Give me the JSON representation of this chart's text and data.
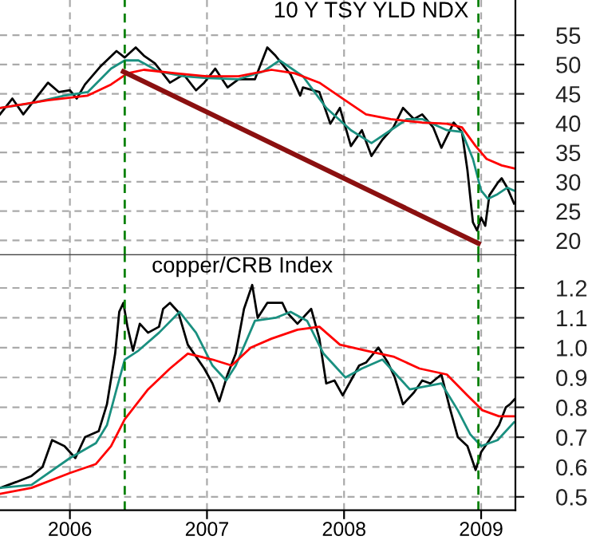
{
  "chart_data": [
    {
      "type": "line",
      "title": "10 Y TSY YLD NDX",
      "xlim": [
        2005.49,
        2009.25
      ],
      "xticks": [
        2006,
        2007,
        2008,
        2009
      ],
      "ylim": [
        17.5,
        61
      ],
      "yticks": [
        20,
        25,
        30,
        35,
        40,
        45,
        50,
        55
      ],
      "grid": true,
      "tick_labels": "y",
      "legend": false,
      "ref_lines": [
        {
          "axis": "x",
          "value": 2006.4,
          "color": "#008000",
          "line_style": "dashed"
        },
        {
          "axis": "x",
          "value": 2008.98,
          "color": "#008000",
          "line_style": "dashed"
        }
      ],
      "series": [
        {
          "color": "#000000",
          "x": [
            2005.49,
            2005.58,
            2005.66,
            2005.84,
            2005.92,
            2006.0,
            2006.05,
            2006.11,
            2006.22,
            2006.34,
            2006.4,
            2006.48,
            2006.54,
            2006.62,
            2006.73,
            2006.83,
            2006.92,
            2006.98,
            2007.06,
            2007.15,
            2007.23,
            2007.35,
            2007.44,
            2007.5,
            2007.61,
            2007.68,
            2007.7,
            2007.82,
            2007.9,
            2007.97,
            2008.05,
            2008.13,
            2008.2,
            2008.28,
            2008.36,
            2008.43,
            2008.51,
            2008.57,
            2008.65,
            2008.71,
            2008.8,
            2008.86,
            2008.9,
            2008.94,
            2008.97,
            2009.0,
            2009.03,
            2009.06,
            2009.12,
            2009.15,
            2009.19,
            2009.24
          ],
          "values": [
            41.5,
            44.2,
            41.5,
            46.9,
            45.3,
            45.6,
            44.2,
            46.6,
            49.6,
            52.3,
            51.2,
            52.9,
            51.5,
            50.2,
            46.9,
            48.3,
            45.6,
            46.9,
            49.3,
            46.1,
            47.5,
            47.5,
            52.9,
            51.5,
            48.3,
            44.7,
            46.1,
            45.3,
            39.9,
            42.6,
            36.1,
            38.8,
            34.4,
            37.2,
            39.3,
            42.6,
            40.7,
            41.5,
            39.3,
            35.8,
            40.1,
            38.5,
            32.0,
            23.1,
            21.7,
            23.9,
            22.5,
            27.7,
            29.8,
            30.6,
            29.0,
            26.3
          ]
        },
        {
          "color": "#1a9080",
          "x": [
            2005.49,
            2005.72,
            2005.96,
            2006.13,
            2006.3,
            2006.4,
            2006.5,
            2006.65,
            2006.83,
            2007.0,
            2007.23,
            2007.41,
            2007.53,
            2007.7,
            2007.87,
            2008.05,
            2008.2,
            2008.34,
            2008.46,
            2008.57,
            2008.75,
            2008.86,
            2008.94,
            2009.0,
            2009.05,
            2009.12,
            2009.19,
            2009.24
          ],
          "values": [
            42.6,
            43.4,
            44.7,
            45.3,
            49.3,
            50.7,
            50.7,
            48.8,
            48.0,
            47.7,
            47.5,
            48.8,
            50.7,
            48.0,
            42.6,
            38.8,
            36.6,
            38.8,
            40.7,
            40.7,
            38.8,
            38.5,
            33.9,
            28.5,
            27.1,
            27.9,
            29.0,
            28.5
          ]
        },
        {
          "color": "#ff0000",
          "x": [
            2005.49,
            2005.84,
            2006.13,
            2006.3,
            2006.42,
            2006.54,
            2006.77,
            2007.0,
            2007.23,
            2007.47,
            2007.64,
            2007.82,
            2007.99,
            2008.16,
            2008.34,
            2008.57,
            2008.75,
            2008.86,
            2008.96,
            2009.04,
            2009.15,
            2009.24
          ],
          "values": [
            42.6,
            43.9,
            44.7,
            46.6,
            48.5,
            49.1,
            48.5,
            48.0,
            48.0,
            49.1,
            48.5,
            46.9,
            44.2,
            41.5,
            40.7,
            40.1,
            39.9,
            39.3,
            36.1,
            33.9,
            32.8,
            32.3
          ]
        },
        {
          "color": "#8b1010",
          "x": [
            2006.39,
            2008.98
          ],
          "values": [
            48.8,
            19.5
          ]
        }
      ]
    },
    {
      "type": "line",
      "title": "copper/CRB Index",
      "xlim": [
        2005.49,
        2009.25
      ],
      "xticks": [
        2006,
        2007,
        2008,
        2009
      ],
      "ylim": [
        0.455,
        1.31
      ],
      "yticks": [
        0.5,
        0.6,
        0.7,
        0.8,
        0.9,
        {
          "value": 1.0,
          "label": "1.0"
        },
        1.1,
        1.2
      ],
      "grid": true,
      "legend": false,
      "ref_lines": [
        {
          "axis": "x",
          "value": 2006.4,
          "color": "#008000",
          "line_style": "dashed"
        },
        {
          "axis": "x",
          "value": 2008.98,
          "color": "#008000",
          "line_style": "dashed"
        }
      ],
      "series": [
        {
          "color": "#000000",
          "x": [
            2005.49,
            2005.61,
            2005.72,
            2005.8,
            2005.87,
            2005.96,
            2006.04,
            2006.11,
            2006.21,
            2006.27,
            2006.33,
            2006.36,
            2006.39,
            2006.42,
            2006.46,
            2006.51,
            2006.57,
            2006.65,
            2006.68,
            2006.73,
            2006.79,
            2006.86,
            2006.98,
            2007.04,
            2007.09,
            2007.15,
            2007.21,
            2007.27,
            2007.33,
            2007.37,
            2007.44,
            2007.55,
            2007.58,
            2007.66,
            2007.76,
            2007.82,
            2007.87,
            2007.93,
            2007.99,
            2008.05,
            2008.11,
            2008.16,
            2008.25,
            2008.32,
            2008.37,
            2008.43,
            2008.51,
            2008.57,
            2008.63,
            2008.71,
            2008.77,
            2008.83,
            2008.9,
            2008.96,
            2009.0,
            2009.06,
            2009.13,
            2009.18,
            2009.21,
            2009.25
          ],
          "values": [
            0.53,
            0.55,
            0.57,
            0.6,
            0.69,
            0.67,
            0.63,
            0.7,
            0.72,
            0.81,
            0.98,
            1.12,
            1.15,
            1.07,
            0.99,
            1.08,
            1.05,
            1.07,
            1.13,
            1.15,
            1.12,
            1.01,
            0.93,
            0.88,
            0.82,
            0.91,
            0.98,
            1.13,
            1.21,
            1.1,
            1.15,
            1.15,
            1.12,
            1.08,
            1.13,
            1.03,
            0.88,
            0.89,
            0.84,
            0.89,
            0.94,
            0.95,
            1.0,
            0.95,
            0.9,
            0.81,
            0.85,
            0.89,
            0.88,
            0.91,
            0.8,
            0.7,
            0.67,
            0.59,
            0.65,
            0.69,
            0.74,
            0.8,
            0.81,
            0.83
          ]
        },
        {
          "color": "#1a9080",
          "x": [
            2005.49,
            2005.72,
            2006.0,
            2006.19,
            2006.27,
            2006.34,
            2006.4,
            2006.5,
            2006.65,
            2006.8,
            2006.92,
            2007.04,
            2007.14,
            2007.21,
            2007.35,
            2007.5,
            2007.61,
            2007.73,
            2007.85,
            2008.01,
            2008.13,
            2008.28,
            2008.48,
            2008.71,
            2008.83,
            2008.92,
            2009.0,
            2009.12,
            2009.24
          ],
          "values": [
            0.53,
            0.54,
            0.63,
            0.68,
            0.74,
            0.86,
            0.96,
            0.99,
            1.05,
            1.12,
            1.05,
            0.94,
            0.89,
            0.94,
            1.09,
            1.1,
            1.12,
            1.09,
            0.98,
            0.9,
            0.93,
            0.96,
            0.86,
            0.88,
            0.79,
            0.71,
            0.67,
            0.69,
            0.75
          ]
        },
        {
          "color": "#ff0000",
          "x": [
            2005.49,
            2005.72,
            2006.0,
            2006.19,
            2006.3,
            2006.4,
            2006.57,
            2006.73,
            2006.86,
            2007.04,
            2007.18,
            2007.32,
            2007.47,
            2007.66,
            2007.82,
            2007.97,
            2008.16,
            2008.36,
            2008.55,
            2008.75,
            2008.9,
            2009.01,
            2009.13,
            2009.24
          ],
          "values": [
            0.51,
            0.53,
            0.58,
            0.61,
            0.67,
            0.76,
            0.86,
            0.93,
            0.98,
            0.96,
            0.94,
            1.0,
            1.03,
            1.06,
            1.07,
            1.01,
            0.99,
            0.97,
            0.93,
            0.91,
            0.84,
            0.79,
            0.77,
            0.77
          ]
        }
      ]
    }
  ]
}
